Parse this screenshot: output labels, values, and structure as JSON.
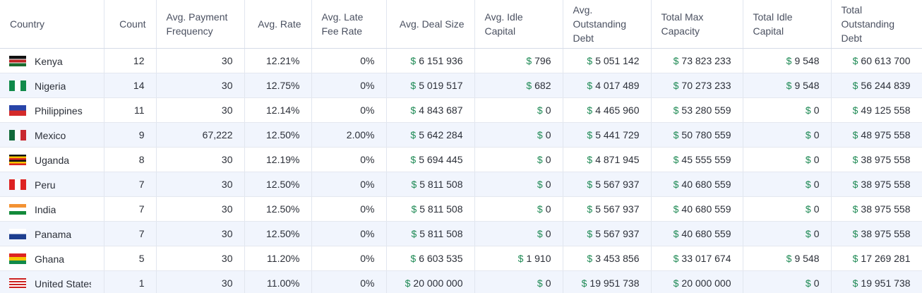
{
  "table": {
    "currency": "$",
    "columns": [
      "Country",
      "Count",
      "Avg. Payment Frequency",
      "Avg. Rate",
      "Avg. Late Fee Rate",
      "Avg. Deal Size",
      "Avg. Idle Capital",
      "Avg. Outstanding Debt",
      "Total Max Capacity",
      "Total Idle Capital",
      "Total Outstanding Debt"
    ],
    "rows": [
      [
        "Kenya",
        "12",
        "30",
        "12.21%",
        "0%",
        "6 151 936",
        "796",
        "5 051 142",
        "73 823 233",
        "9 548",
        "60 613 700"
      ],
      [
        "Nigeria",
        "14",
        "30",
        "12.75%",
        "0%",
        "5 019 517",
        "682",
        "4 017 489",
        "70 273 233",
        "9 548",
        "56 244 839"
      ],
      [
        "Philippines",
        "11",
        "30",
        "12.14%",
        "0%",
        "4 843 687",
        "0",
        "4 465 960",
        "53 280 559",
        "0",
        "49 125 558"
      ],
      [
        "Mexico",
        "9",
        "67,222",
        "12.50%",
        "2.00%",
        "5 642 284",
        "0",
        "5 441 729",
        "50 780 559",
        "0",
        "48 975 558"
      ],
      [
        "Uganda",
        "8",
        "30",
        "12.19%",
        "0%",
        "5 694 445",
        "0",
        "4 871 945",
        "45 555 559",
        "0",
        "38 975 558"
      ],
      [
        "Peru",
        "7",
        "30",
        "12.50%",
        "0%",
        "5 811 508",
        "0",
        "5 567 937",
        "40 680 559",
        "0",
        "38 975 558"
      ],
      [
        "India",
        "7",
        "30",
        "12.50%",
        "0%",
        "5 811 508",
        "0",
        "5 567 937",
        "40 680 559",
        "0",
        "38 975 558"
      ],
      [
        "Panama",
        "7",
        "30",
        "12.50%",
        "0%",
        "5 811 508",
        "0",
        "5 567 937",
        "40 680 559",
        "0",
        "38 975 558"
      ],
      [
        "Ghana",
        "5",
        "30",
        "11.20%",
        "0%",
        "6 603 535",
        "1 910",
        "3 453 856",
        "33 017 674",
        "9 548",
        "17 269 281"
      ],
      [
        "United States",
        "1",
        "30",
        "11.00%",
        "0%",
        "20 000 000",
        "0",
        "19 951 738",
        "20 000 000",
        "0",
        "19 951 738"
      ]
    ]
  }
}
